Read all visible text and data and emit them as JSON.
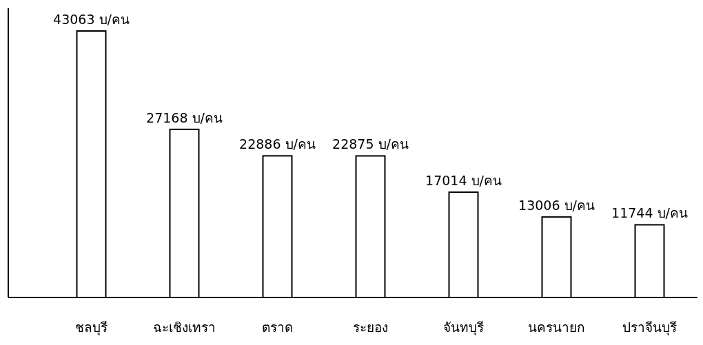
{
  "chart_data": {
    "type": "bar",
    "categories": [
      "ชลบุรี",
      "ฉะเชิงเทรา",
      "ตราด",
      "ระยอง",
      "จันทบุรี",
      "นครนายก",
      "ปราจีนบุรี"
    ],
    "values": [
      43063,
      27168,
      22886,
      22875,
      17014,
      13006,
      11744
    ],
    "value_labels": [
      "43063 บ/คน",
      "27168 บ/คน",
      "22886 บ/คน",
      "22875 บ/คน",
      "17014 บ/คน",
      "13006 บ/คน",
      "11744 บ/คน"
    ],
    "color": "#ffffff",
    "grid": false
  }
}
